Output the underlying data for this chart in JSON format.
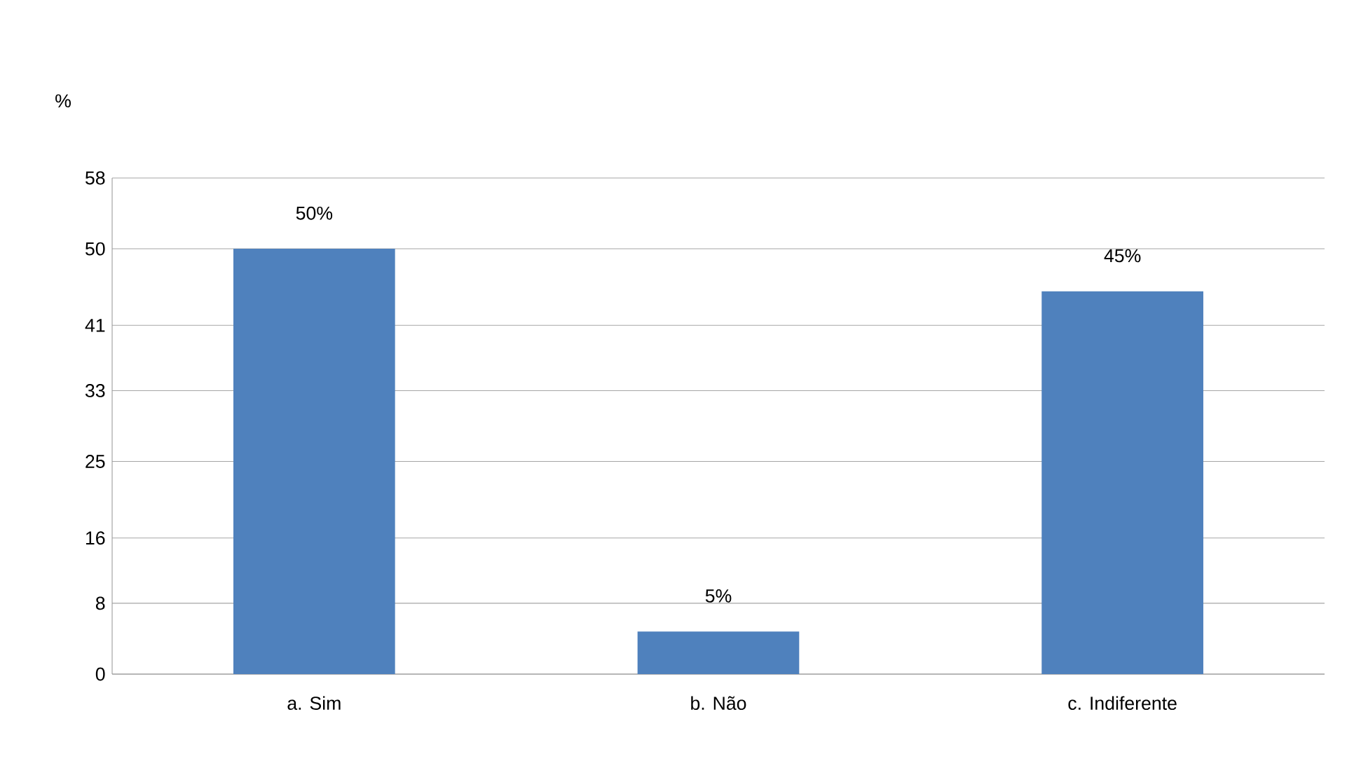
{
  "chart_data": {
    "type": "bar",
    "ylabel": "%",
    "categories": [
      "a. Sim",
      "b. Não",
      "c. Indiferente"
    ],
    "values": [
      50,
      5,
      45
    ],
    "value_labels": [
      "50%",
      "5%",
      "45%"
    ],
    "color": "#4f81bd",
    "ylim": [
      0,
      58.33
    ],
    "yticks": [
      0,
      {
        "value": 8.33,
        "label": "8"
      },
      16,
      25,
      {
        "value": 33.33,
        "label": "33"
      },
      41,
      50,
      {
        "value": 58.33,
        "label": "58"
      }
    ],
    "grid": "y"
  }
}
